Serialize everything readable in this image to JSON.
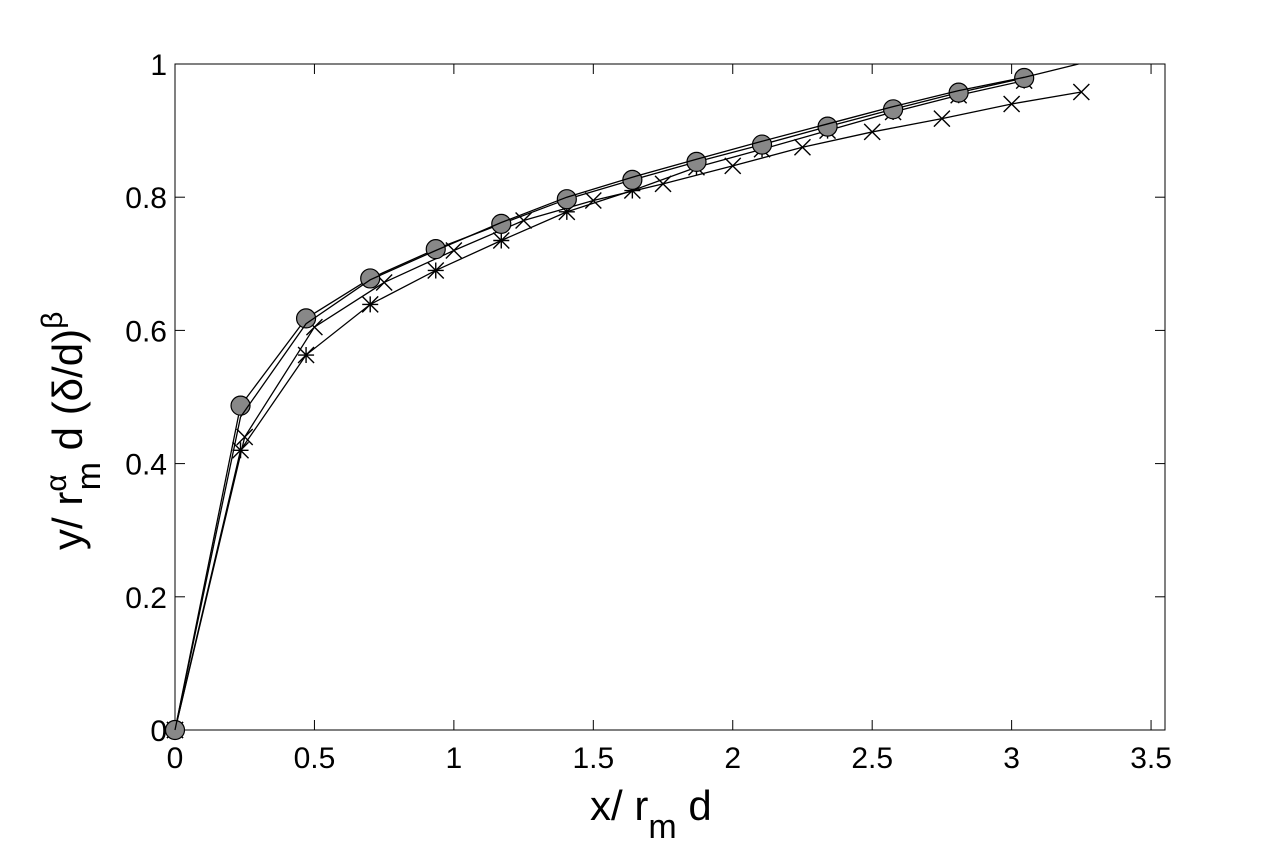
{
  "chart_data": {
    "type": "line",
    "xlabel": [
      "x/ r",
      "m",
      " d"
    ],
    "ylabel": [
      "y/ r",
      "α",
      "m",
      " d (δ/d)",
      "β"
    ],
    "xlim": [
      0,
      3.55
    ],
    "ylim": [
      0,
      1
    ],
    "xticks": [
      0,
      0.5,
      1,
      1.5,
      2,
      2.5,
      3,
      3.5
    ],
    "yticks": [
      0,
      0.2,
      0.4,
      0.6,
      0.8,
      1
    ],
    "series": [
      {
        "marker": "x",
        "color": "#000000",
        "x": [
          0,
          0.25,
          0.5,
          0.75,
          1,
          1.25,
          1.5,
          1.75,
          2,
          2.25,
          2.5,
          2.75,
          3,
          3.25
        ],
        "values": [
          0,
          0.44,
          0.605,
          0.672,
          0.72,
          0.765,
          0.795,
          0.82,
          0.847,
          0.875,
          0.898,
          0.918,
          0.94,
          0.958
        ]
      },
      {
        "marker": "asterisk",
        "color": "#000000",
        "x": [
          0,
          0.235,
          0.47,
          0.7,
          0.935,
          1.17,
          1.405,
          1.64,
          1.87,
          2.105,
          2.34,
          2.575,
          2.81,
          3.045
        ],
        "values": [
          0,
          0.42,
          0.563,
          0.639,
          0.69,
          0.735,
          0.778,
          0.81,
          0.845,
          0.872,
          0.9,
          0.928,
          0.953,
          0.975
        ]
      },
      {
        "marker": "circle",
        "color": "#000000",
        "fill": "#888888",
        "x": [
          0,
          0.235,
          0.47,
          0.7,
          0.935,
          1.17,
          1.405,
          1.64,
          1.87,
          2.105,
          2.34,
          2.575,
          2.81,
          3.045
        ],
        "values": [
          0,
          0.487,
          0.618,
          0.678,
          0.722,
          0.76,
          0.797,
          0.826,
          0.853,
          0.879,
          0.906,
          0.932,
          0.957,
          0.979
        ]
      },
      {
        "marker": "none",
        "color": "#000000",
        "x": [
          0,
          0.235,
          0.47,
          0.7,
          0.935,
          1.17,
          1.405,
          1.64,
          1.87,
          2.105,
          2.34,
          2.575,
          2.81,
          3.045,
          3.24
        ],
        "values": [
          0,
          0.47,
          0.61,
          0.676,
          0.72,
          0.762,
          0.8,
          0.83,
          0.857,
          0.884,
          0.91,
          0.936,
          0.96,
          0.98,
          1
        ]
      }
    ]
  }
}
